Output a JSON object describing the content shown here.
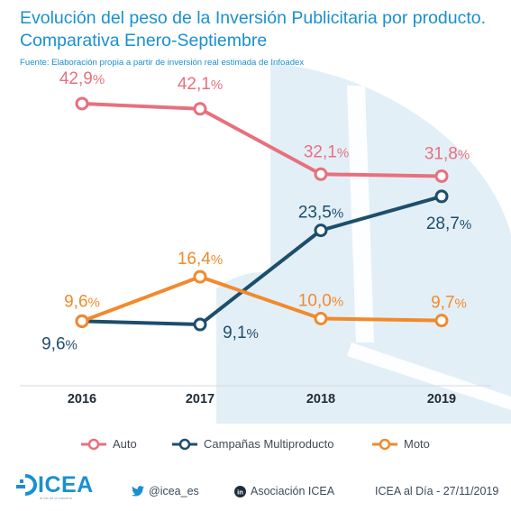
{
  "header": {
    "title_line1": "Evolución del peso de la Inversión Publicitaria por producto.",
    "title_line2": "Comparativa Enero-Septiembre",
    "source": "Fuente: Elaboración propia a partir de inversión real estimada de Infoadex"
  },
  "chart_data": {
    "type": "line",
    "categories": [
      "2016",
      "2017",
      "2018",
      "2019"
    ],
    "series": [
      {
        "name": "Auto",
        "values": [
          42.9,
          42.1,
          32.1,
          31.8
        ],
        "labels": [
          "42,9",
          "42,1",
          "32,1",
          "31,8"
        ],
        "color": "#e8707e"
      },
      {
        "name": "Campañas Multiproducto",
        "values": [
          9.6,
          9.1,
          23.5,
          28.7
        ],
        "labels": [
          "9,6",
          "9,1",
          "23,5",
          "28,7"
        ],
        "color": "#1d4e6b"
      },
      {
        "name": "Moto",
        "values": [
          9.6,
          16.4,
          10.0,
          9.7
        ],
        "labels": [
          "9,6",
          "16,4",
          "10,0",
          "9,7"
        ],
        "color": "#f18a2d"
      }
    ],
    "unit": "%",
    "grid": false,
    "legend_position": "bottom"
  },
  "footer": {
    "brand": "ICEA",
    "brand_sub": "al día de la industria",
    "twitter": "@icea_es",
    "linkedin": "Asociación ICEA",
    "date_text": "ICEA al Día - 27/11/2019"
  }
}
